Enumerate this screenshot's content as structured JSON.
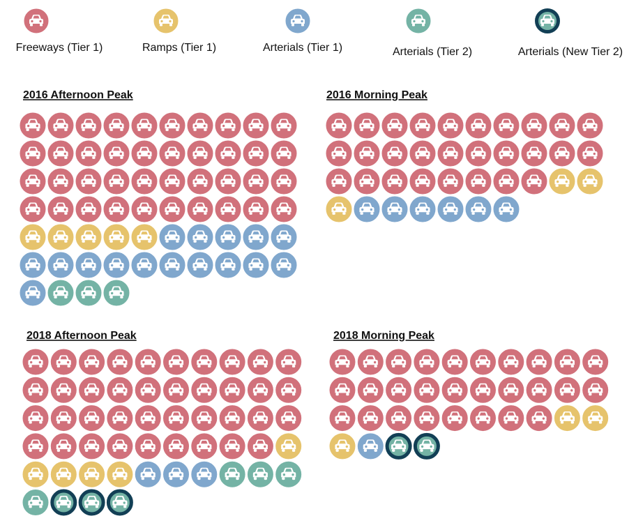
{
  "chart_data": {
    "type": "pictogram",
    "series": [
      {
        "name": "Freeways (Tier 1)",
        "color": "#d1717b"
      },
      {
        "name": "Ramps (Tier 1)",
        "color": "#e6c36c"
      },
      {
        "name": "Arterials (Tier 1)",
        "color": "#80a7cd"
      },
      {
        "name": "Arterials (Tier 2)",
        "color": "#74b3a5"
      },
      {
        "name": "Arterials (New Tier 2)",
        "color": "#74b3a5",
        "border": "#123f55"
      }
    ],
    "panels": [
      {
        "title": "2016 Afternoon Peak",
        "values": [
          40,
          5,
          16,
          3,
          0
        ]
      },
      {
        "title": "2016 Morning Peak",
        "values": [
          28,
          3,
          6,
          0,
          0
        ]
      },
      {
        "title": "2018 Afternoon Peak",
        "values": [
          39,
          5,
          3,
          4,
          3
        ]
      },
      {
        "title": "2018 Morning Peak",
        "values": [
          28,
          3,
          1,
          0,
          2
        ]
      }
    ]
  }
}
